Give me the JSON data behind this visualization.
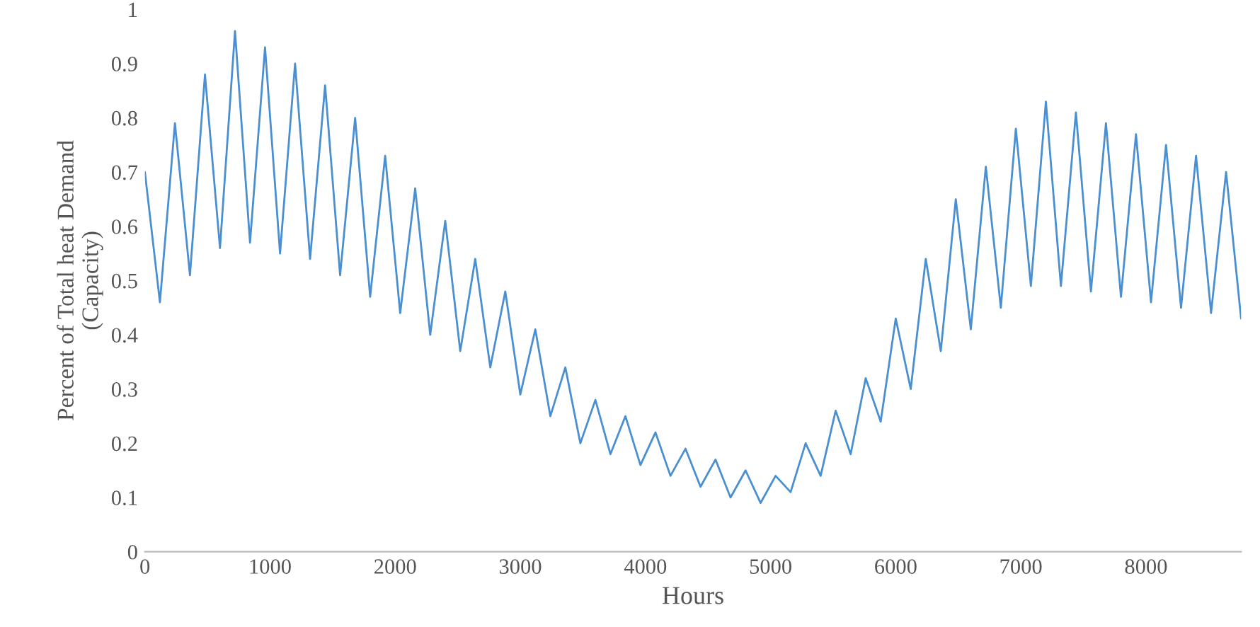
{
  "chart_data": {
    "type": "line",
    "xlabel": "Hours",
    "ylabel": "Percent of Total heat Demand\n(Capacity)",
    "x": [
      0,
      120,
      240,
      360,
      480,
      600,
      720,
      840,
      960,
      1080,
      1200,
      1320,
      1440,
      1560,
      1680,
      1800,
      1920,
      2040,
      2160,
      2280,
      2400,
      2520,
      2640,
      2760,
      2880,
      3000,
      3120,
      3240,
      3360,
      3480,
      3600,
      3720,
      3840,
      3960,
      4080,
      4200,
      4320,
      4440,
      4560,
      4680,
      4800,
      4920,
      5040,
      5160,
      5280,
      5400,
      5520,
      5640,
      5760,
      5880,
      6000,
      6120,
      6240,
      6360,
      6480,
      6600,
      6720,
      6840,
      6960,
      7080,
      7200,
      7320,
      7440,
      7560,
      7680,
      7800,
      7920,
      8040,
      8160,
      8280,
      8400,
      8520,
      8640,
      8760
    ],
    "series": [
      {
        "color": "#4a8fd2",
        "values": [
          0.7,
          0.46,
          0.79,
          0.51,
          0.88,
          0.56,
          0.96,
          0.57,
          0.93,
          0.55,
          0.9,
          0.54,
          0.86,
          0.51,
          0.8,
          0.47,
          0.73,
          0.44,
          0.67,
          0.4,
          0.61,
          0.37,
          0.54,
          0.34,
          0.48,
          0.29,
          0.41,
          0.25,
          0.34,
          0.2,
          0.28,
          0.18,
          0.25,
          0.16,
          0.22,
          0.14,
          0.19,
          0.12,
          0.17,
          0.1,
          0.15,
          0.09,
          0.14,
          0.11,
          0.2,
          0.14,
          0.26,
          0.18,
          0.32,
          0.24,
          0.43,
          0.3,
          0.54,
          0.37,
          0.65,
          0.41,
          0.71,
          0.45,
          0.78,
          0.49,
          0.83,
          0.49,
          0.81,
          0.48,
          0.79,
          0.47,
          0.77,
          0.46,
          0.75,
          0.45,
          0.73,
          0.44,
          0.7,
          0.43
        ]
      }
    ],
    "xlim": [
      0,
      8760
    ],
    "xticks": [
      0,
      1000,
      2000,
      3000,
      4000,
      5000,
      6000,
      7000,
      8000
    ],
    "ylim": [
      0,
      1
    ],
    "yticks": [
      0,
      0.1,
      0.2,
      0.3,
      0.4,
      0.5,
      0.6,
      0.7,
      0.8,
      0.9,
      1
    ],
    "grid": false,
    "marker": "none",
    "line_style": "solid"
  }
}
